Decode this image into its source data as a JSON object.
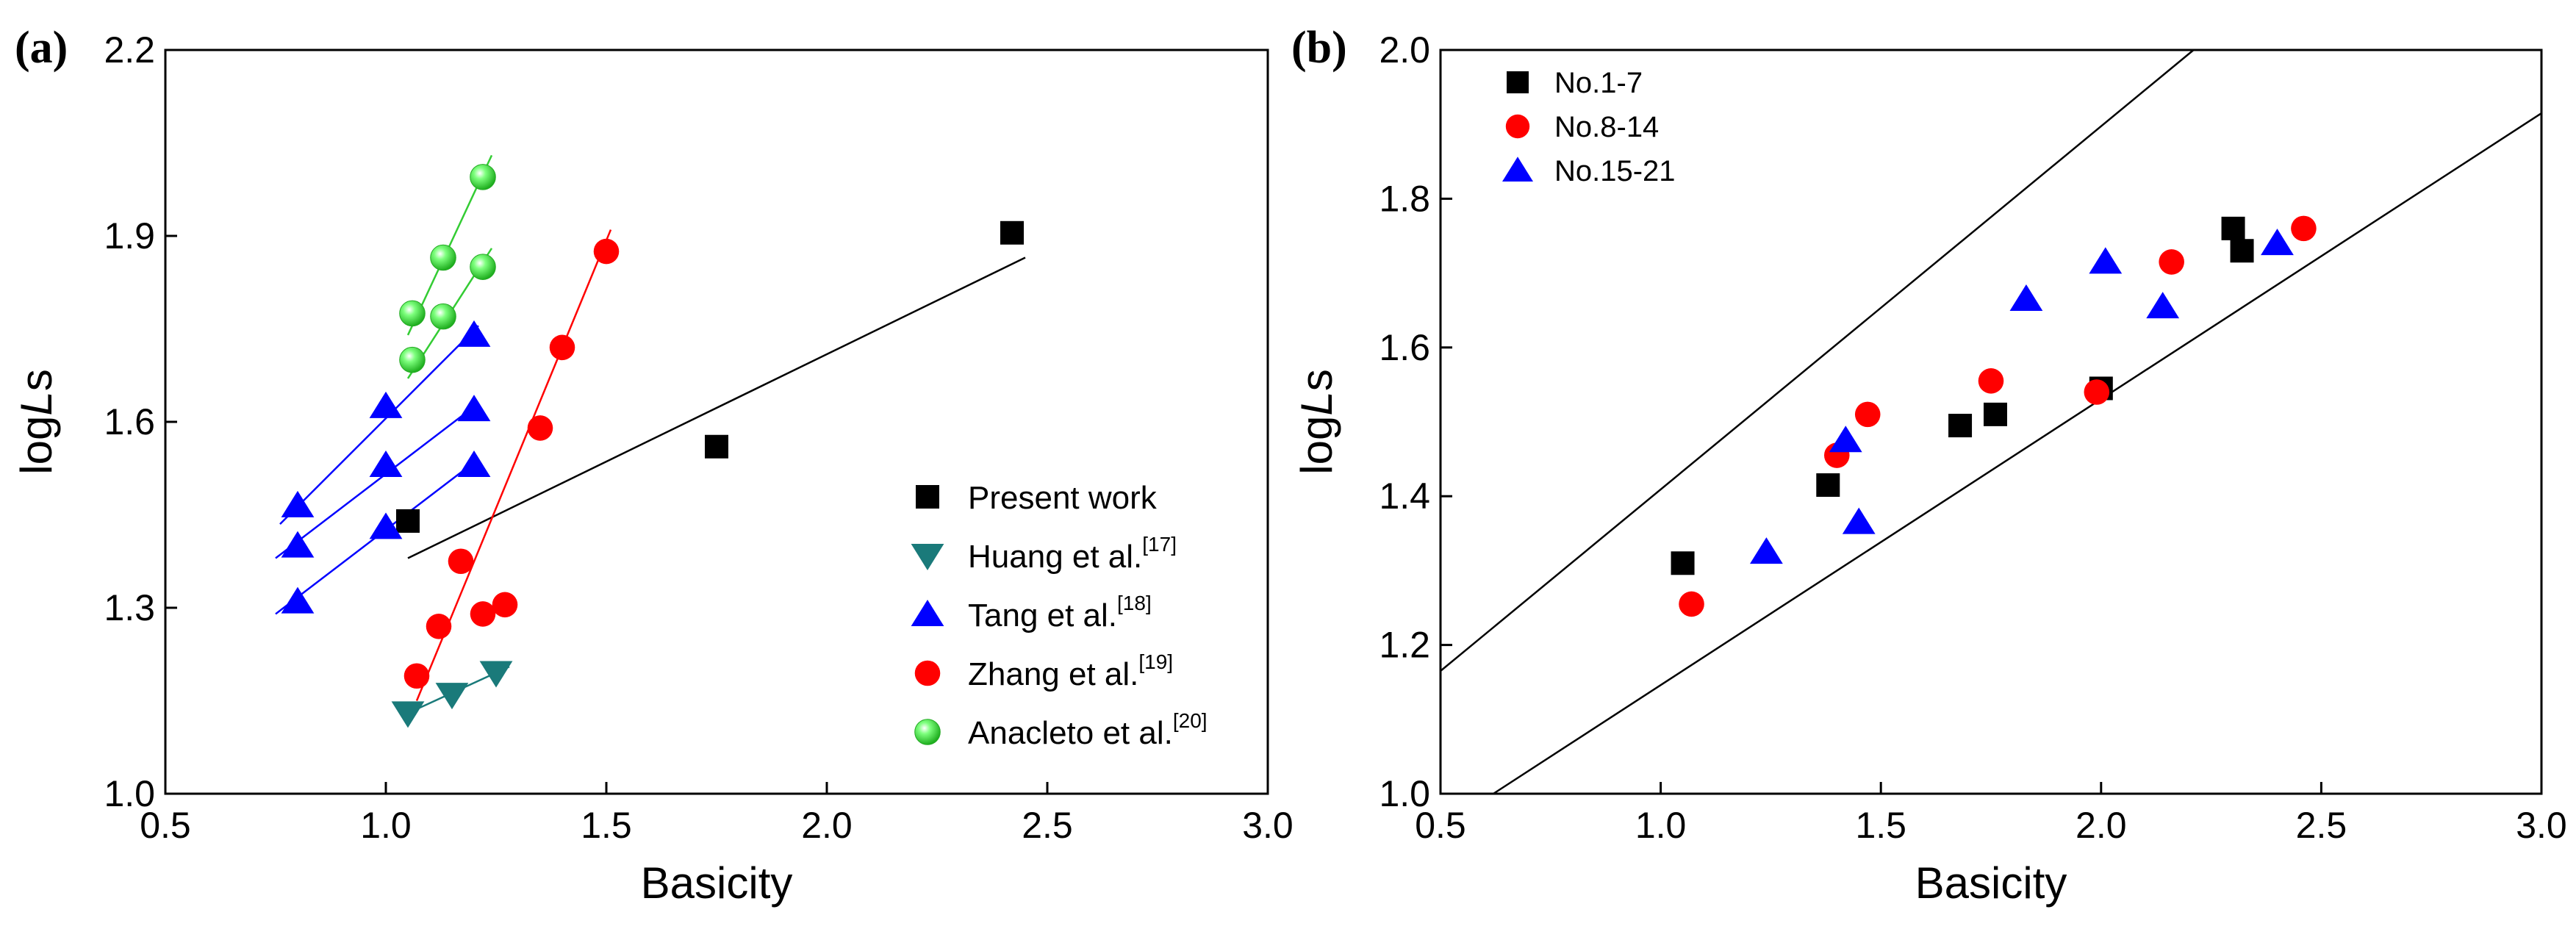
{
  "chart_data": [
    {
      "panel": "(a)",
      "type": "scatter",
      "xlabel": "Basicity",
      "ylabel_prefix": "log",
      "ylabel_italic": "L",
      "ylabel_suffix": "s",
      "xlim": [
        0.5,
        3.0
      ],
      "ylim": [
        1.0,
        2.2
      ],
      "xticks": [
        "0.5",
        "1.0",
        "1.5",
        "2.0",
        "2.5",
        "3.0"
      ],
      "yticks": [
        "1.0",
        "1.3",
        "1.6",
        "1.9",
        "2.2"
      ],
      "legend_position": "bottom-right",
      "series": [
        {
          "name": "Present work",
          "ref": "",
          "marker": "square",
          "color": "#000000",
          "points": [
            [
              1.05,
              1.44
            ],
            [
              1.75,
              1.56
            ],
            [
              2.42,
              1.905
            ]
          ],
          "fits": [
            [
              [
                1.05,
                1.38
              ],
              [
                2.45,
                1.865
              ]
            ]
          ]
        },
        {
          "name": "Huang et al.",
          "ref": "[17]",
          "marker": "triangle-down",
          "color": "#1a7a7a",
          "points": [
            [
              1.05,
              1.13
            ],
            [
              1.15,
              1.16
            ],
            [
              1.25,
              1.195
            ]
          ],
          "fits": [
            [
              [
                1.05,
                1.13
              ],
              [
                1.28,
                1.205
              ]
            ]
          ]
        },
        {
          "name": "Tang et al.",
          "ref": "[18]",
          "marker": "triangle-up",
          "color": "#0000ff",
          "points": [
            [
              0.8,
              1.465
            ],
            [
              1.0,
              1.625
            ],
            [
              1.2,
              1.74
            ],
            [
              0.8,
              1.4
            ],
            [
              1.0,
              1.53
            ],
            [
              1.2,
              1.62
            ],
            [
              0.8,
              1.31
            ],
            [
              1.0,
              1.43
            ],
            [
              1.2,
              1.53
            ]
          ],
          "fits": [
            [
              [
                0.76,
                1.435
              ],
              [
                1.21,
                1.755
              ]
            ],
            [
              [
                0.75,
                1.38
              ],
              [
                1.21,
                1.63
              ]
            ],
            [
              [
                0.75,
                1.29
              ],
              [
                1.21,
                1.54
              ]
            ]
          ]
        },
        {
          "name": "Zhang et al.",
          "ref": "[19]",
          "marker": "circle",
          "color": "#ff0000",
          "points": [
            [
              1.07,
              1.19
            ],
            [
              1.12,
              1.27
            ],
            [
              1.17,
              1.375
            ],
            [
              1.35,
              1.59
            ],
            [
              1.4,
              1.72
            ],
            [
              1.5,
              1.875
            ],
            [
              1.22,
              1.29
            ],
            [
              1.27,
              1.305
            ]
          ],
          "fits": [
            [
              [
                1.07,
                1.15
              ],
              [
                1.51,
                1.91
              ]
            ],
            [
              [
                1.22,
                1.29
              ],
              [
                1.28,
                1.31
              ]
            ]
          ]
        },
        {
          "name": "Anacleto et al.",
          "ref": "[20]",
          "marker": "sphere",
          "color": "#33dd33",
          "points": [
            [
              1.06,
              1.775
            ],
            [
              1.13,
              1.865
            ],
            [
              1.22,
              1.995
            ],
            [
              1.06,
              1.7
            ],
            [
              1.13,
              1.77
            ],
            [
              1.22,
              1.85
            ]
          ],
          "fits": [
            [
              [
                1.05,
                1.74
              ],
              [
                1.24,
                2.03
              ]
            ],
            [
              [
                1.05,
                1.67
              ],
              [
                1.24,
                1.88
              ]
            ]
          ]
        }
      ]
    },
    {
      "panel": "(b)",
      "type": "scatter",
      "xlabel": "Basicity",
      "ylabel_prefix": "log",
      "ylabel_italic": "L",
      "ylabel_suffix": "s",
      "xlim": [
        0.5,
        3.0
      ],
      "ylim": [
        1.0,
        2.0
      ],
      "xticks": [
        "0.5",
        "1.0",
        "1.5",
        "2.0",
        "2.5",
        "3.0"
      ],
      "yticks": [
        "1.0",
        "1.2",
        "1.4",
        "1.6",
        "1.8",
        "2.0"
      ],
      "legend_position": "top-left",
      "bounds": [
        [
          [
            0.5,
            1.165
          ],
          [
            2.21,
            2.0
          ]
        ],
        [
          [
            0.62,
            1.0
          ],
          [
            3.0,
            1.915
          ]
        ]
      ],
      "series": [
        {
          "name": "No.1-7",
          "marker": "square",
          "color": "#000000",
          "points": [
            [
              1.05,
              1.31
            ],
            [
              1.38,
              1.415
            ],
            [
              1.68,
              1.495
            ],
            [
              1.76,
              1.51
            ],
            [
              2.0,
              1.545
            ],
            [
              2.3,
              1.76
            ],
            [
              2.32,
              1.73
            ]
          ]
        },
        {
          "name": "No.8-14",
          "marker": "circle",
          "color": "#ff0000",
          "points": [
            [
              1.07,
              1.255
            ],
            [
              1.4,
              1.455
            ],
            [
              1.47,
              1.51
            ],
            [
              1.75,
              1.555
            ],
            [
              1.99,
              1.54
            ],
            [
              2.16,
              1.715
            ],
            [
              2.46,
              1.76
            ]
          ]
        },
        {
          "name": "No.15-21",
          "marker": "triangle-up",
          "color": "#0000ff",
          "points": [
            [
              1.24,
              1.325
            ],
            [
              1.42,
              1.475
            ],
            [
              1.45,
              1.365
            ],
            [
              1.83,
              1.665
            ],
            [
              2.01,
              1.715
            ],
            [
              2.14,
              1.655
            ],
            [
              2.4,
              1.74
            ]
          ]
        }
      ]
    }
  ]
}
